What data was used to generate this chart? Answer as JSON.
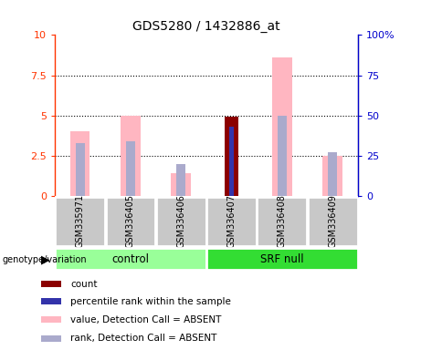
{
  "title": "GDS5280 / 1432886_at",
  "samples": [
    "GSM335971",
    "GSM336405",
    "GSM336406",
    "GSM336407",
    "GSM336408",
    "GSM336409"
  ],
  "ylim_left": [
    0,
    10
  ],
  "ylim_right": [
    0,
    100
  ],
  "yticks_left": [
    0,
    2.5,
    5.0,
    7.5,
    10
  ],
  "ytick_labels_left": [
    "0",
    "2.5",
    "5",
    "7.5",
    "10"
  ],
  "ytick_labels_right": [
    "0",
    "25",
    "50",
    "75",
    "100%"
  ],
  "pink_values": [
    4.0,
    5.0,
    1.4,
    0.0,
    8.6,
    2.5
  ],
  "lightblue_values": [
    33,
    34,
    0,
    0,
    50,
    27
  ],
  "red_values": [
    0.0,
    0.0,
    0.0,
    4.9,
    0.0,
    0.0
  ],
  "blue_values": [
    0.0,
    0.0,
    0.0,
    43,
    0.0,
    0.0
  ],
  "lightblue_rank_values": [
    0.0,
    0.0,
    20,
    0.0,
    0.0,
    0.0
  ],
  "colors": {
    "pink": "#FFB6C1",
    "lightblue": "#AAAACC",
    "red": "#8B0000",
    "blue": "#3333AA",
    "axis_left": "#FF3300",
    "axis_right": "#0000CC",
    "bg_label": "#C8C8C8",
    "bg_group_control": "#99FF99",
    "bg_group_srf": "#33DD33"
  },
  "legend_items": [
    {
      "label": "count",
      "color": "#8B0000"
    },
    {
      "label": "percentile rank within the sample",
      "color": "#3333AA"
    },
    {
      "label": "value, Detection Call = ABSENT",
      "color": "#FFB6C1"
    },
    {
      "label": "rank, Detection Call = ABSENT",
      "color": "#AAAACC"
    }
  ]
}
